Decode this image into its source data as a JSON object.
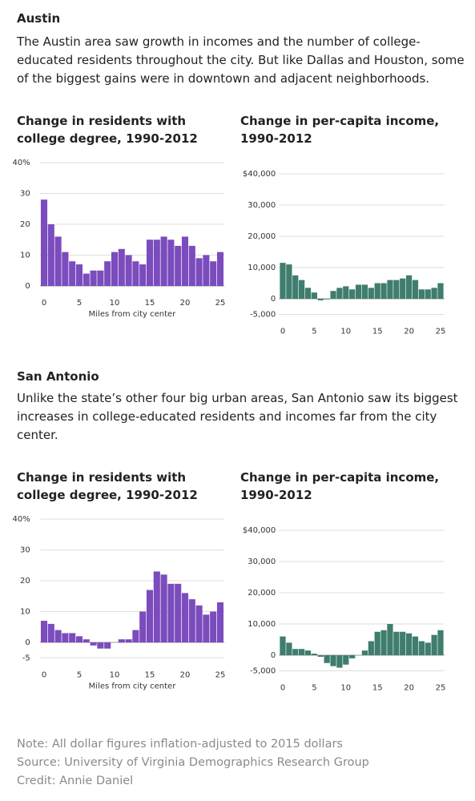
{
  "sections": [
    {
      "title": "Austin",
      "text": "The Austin area saw growth in incomes and the number of college-educated residents throughout the city. But like Dallas and Houston, some of the biggest gains were in downtown and adjacent neighborhoods."
    },
    {
      "title": "San Antonio",
      "text": "Unlike the state’s other four big urban areas, San Antonio saw its biggest increases in college-educated residents and incomes far from the city center."
    }
  ],
  "chart_data": [
    {
      "type": "bar",
      "title": "Change in residents with college degree, 1990-2012",
      "x_label": "Miles from city center",
      "color": "#7b4cbd",
      "x": [
        0,
        1,
        2,
        3,
        4,
        5,
        6,
        7,
        8,
        9,
        10,
        11,
        12,
        13,
        14,
        15,
        16,
        17,
        18,
        19,
        20,
        21,
        22,
        23,
        24,
        25
      ],
      "values": [
        28,
        20,
        16,
        11,
        8,
        7,
        4,
        5,
        5,
        8,
        11,
        12,
        10,
        8,
        7,
        15,
        15,
        16,
        15,
        13,
        16,
        13,
        9,
        10,
        8,
        11
      ],
      "xlim": [
        -0.6,
        25.6
      ],
      "xticks": [
        0,
        5,
        10,
        15,
        20,
        25
      ],
      "ylim": [
        0,
        40
      ],
      "yticks": [
        0,
        10,
        20,
        30,
        {
          "value": 40,
          "label": "40%"
        }
      ],
      "grid": true
    },
    {
      "type": "bar",
      "title": "Change in per-capita income, 1990-2012",
      "color": "#3f7d6e",
      "x": [
        0,
        1,
        2,
        3,
        4,
        5,
        6,
        7,
        8,
        9,
        10,
        11,
        12,
        13,
        14,
        15,
        16,
        17,
        18,
        19,
        20,
        21,
        22,
        23,
        24,
        25
      ],
      "values": [
        11500,
        11000,
        7500,
        6000,
        3500,
        2000,
        -500,
        -200,
        2500,
        3500,
        4000,
        3000,
        4500,
        4500,
        3500,
        5000,
        5000,
        6000,
        6000,
        6500,
        7500,
        6000,
        3000,
        3000,
        3500,
        5000
      ],
      "xlim": [
        -0.6,
        25.6
      ],
      "xticks": [
        0,
        5,
        10,
        15,
        20,
        25
      ],
      "ylim": [
        -5000,
        40000
      ],
      "yticks": [
        {
          "value": -5000,
          "label": "-5,000"
        },
        0,
        {
          "value": 10000,
          "label": "10,000"
        },
        {
          "value": 20000,
          "label": "20,000"
        },
        {
          "value": 30000,
          "label": "30,000"
        },
        {
          "value": 40000,
          "label": "$40,000"
        }
      ],
      "grid": true
    },
    {
      "type": "bar",
      "title": "Change in residents with college degree, 1990-2012",
      "x_label": "Miles from city center",
      "color": "#7b4cbd",
      "x": [
        0,
        1,
        2,
        3,
        4,
        5,
        6,
        7,
        8,
        9,
        10,
        11,
        12,
        13,
        14,
        15,
        16,
        17,
        18,
        19,
        20,
        21,
        22,
        23,
        24,
        25
      ],
      "values": [
        7,
        6,
        4,
        3,
        3,
        2,
        1,
        -1,
        -2,
        -2,
        0,
        1,
        1,
        4,
        10,
        17,
        23,
        22,
        19,
        19,
        16,
        14,
        12,
        9,
        10,
        13
      ],
      "xlim": [
        -0.6,
        25.6
      ],
      "xticks": [
        0,
        5,
        10,
        15,
        20,
        25
      ],
      "ylim": [
        -5,
        40
      ],
      "yticks": [
        -5,
        0,
        10,
        20,
        30,
        {
          "value": 40,
          "label": "40%"
        }
      ],
      "grid": true
    },
    {
      "type": "bar",
      "title": "Change in per-capita income, 1990-2012",
      "color": "#3f7d6e",
      "x": [
        0,
        1,
        2,
        3,
        4,
        5,
        6,
        7,
        8,
        9,
        10,
        11,
        12,
        13,
        14,
        15,
        16,
        17,
        18,
        19,
        20,
        21,
        22,
        23,
        24,
        25
      ],
      "values": [
        6000,
        4000,
        2000,
        2000,
        1500,
        500,
        -500,
        -2500,
        -3500,
        -4000,
        -3000,
        -1000,
        0,
        1500,
        4500,
        7500,
        8000,
        10000,
        7500,
        7500,
        7000,
        6000,
        4500,
        4000,
        6500,
        8000
      ],
      "xlim": [
        -0.6,
        25.6
      ],
      "xticks": [
        0,
        5,
        10,
        15,
        20,
        25
      ],
      "ylim": [
        -5000,
        40000
      ],
      "yticks": [
        {
          "value": -5000,
          "label": "-5,000"
        },
        0,
        {
          "value": 10000,
          "label": "10,000"
        },
        {
          "value": 20000,
          "label": "20,000"
        },
        {
          "value": 30000,
          "label": "30,000"
        },
        {
          "value": 40000,
          "label": "$40,000"
        }
      ],
      "grid": true
    }
  ],
  "notes": [
    "Note: All dollar figures inflation-adjusted to 2015 dollars",
    "Source: University of Virginia Demographics Research Group",
    "Credit: Annie Daniel"
  ]
}
